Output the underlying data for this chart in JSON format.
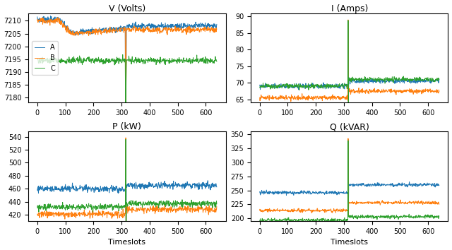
{
  "title_V": "V (Volts)",
  "title_I": "I (Amps)",
  "title_P": "P (kW)",
  "title_Q": "Q (kVAR)",
  "xlabel": "Timeslots",
  "legend_labels": [
    "A",
    "B",
    "C"
  ],
  "colors": [
    "#1f77b4",
    "#ff7f0e",
    "#2ca02c"
  ],
  "n_points": 640,
  "event_slot": 315,
  "V_ylim": [
    7178,
    7213
  ],
  "I_ylim": [
    64,
    91
  ],
  "P_ylim": [
    410,
    548
  ],
  "Q_ylim": [
    195,
    355
  ],
  "V_yticks": [
    7180,
    7185,
    7190,
    7195,
    7200,
    7205,
    7210
  ],
  "I_yticks": [
    65,
    70,
    75,
    80,
    85,
    90
  ],
  "P_yticks": [
    420,
    440,
    460,
    480,
    500,
    520,
    540
  ],
  "Q_yticks": [
    200,
    225,
    250,
    275,
    300,
    325,
    350
  ],
  "xticks": [
    0,
    100,
    200,
    300,
    400,
    500,
    600
  ],
  "V_before": [
    7210.5,
    7210.0,
    7194.5
  ],
  "V_drop100": [
    7205.5,
    7205.0,
    7194.5
  ],
  "V_after": [
    7208.0,
    7206.5,
    7194.5
  ],
  "V_dip": 7178.5,
  "V_noise": 0.6,
  "I_before": [
    69.0,
    65.5,
    69.0
  ],
  "I_after": [
    70.5,
    67.5,
    71.0
  ],
  "I_peak": 89.0,
  "I_noise": 0.35,
  "P_before": [
    460.0,
    421.0,
    432.0
  ],
  "P_after": [
    465.0,
    428.0,
    437.0
  ],
  "P_peak": 540.0,
  "P_noise": 2.5,
  "Q_before": [
    246.0,
    214.0,
    197.0
  ],
  "Q_after": [
    260.0,
    228.0,
    203.0
  ],
  "Q_peak": 340.0,
  "Q_noise": 1.5
}
